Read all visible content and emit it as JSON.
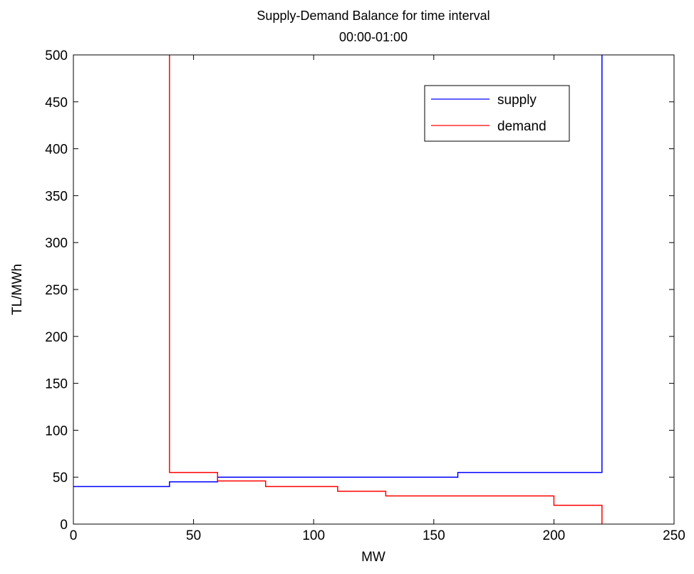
{
  "chart_data": {
    "type": "line",
    "step": true,
    "title": [
      "Supply-Demand Balance for time interval",
      "00:00-01:00"
    ],
    "xlabel": "MW",
    "ylabel": "TL/MWh",
    "xlim": [
      0,
      250
    ],
    "ylim": [
      0,
      500
    ],
    "xticks": [
      0,
      50,
      100,
      150,
      200,
      250
    ],
    "yticks": [
      0,
      50,
      100,
      150,
      200,
      250,
      300,
      350,
      400,
      450,
      500
    ],
    "grid": false,
    "legend_position": "top-right",
    "series": [
      {
        "name": "supply",
        "color": "#0000ff",
        "x": [
          0,
          40,
          40,
          60,
          60,
          160,
          160,
          220,
          220
        ],
        "y": [
          40,
          40,
          45,
          45,
          50,
          50,
          55,
          55,
          500
        ]
      },
      {
        "name": "demand",
        "color": "#ff0000",
        "x": [
          40,
          40,
          60,
          60,
          80,
          80,
          110,
          110,
          130,
          130,
          200,
          200,
          220,
          220
        ],
        "y": [
          500,
          55,
          55,
          46,
          46,
          40,
          40,
          35,
          35,
          30,
          30,
          20,
          20,
          0
        ]
      }
    ]
  }
}
